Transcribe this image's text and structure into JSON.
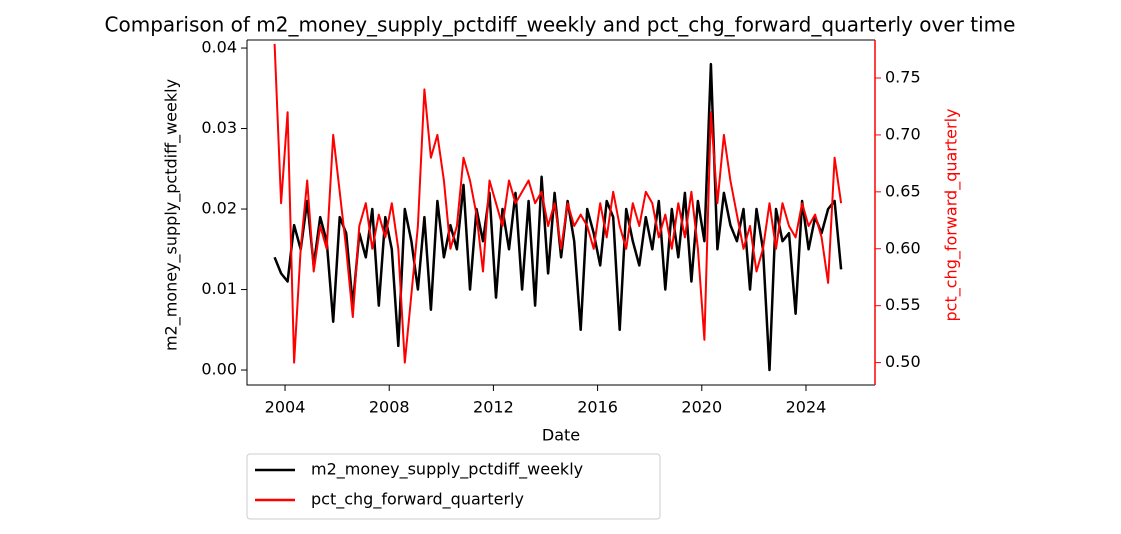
{
  "chart_data": {
    "type": "line",
    "title": "Comparison of m2_money_supply_pctdiff_weekly and pct_chg_forward_quarterly over time",
    "x_label": "Date",
    "y_label": "m2_money_supply_pctdiff_weekly",
    "y2_label": "pct_chg_forward_quarterly",
    "x": [
      2003.6,
      2003.85,
      2004.1,
      2004.35,
      2004.6,
      2004.85,
      2005.1,
      2005.35,
      2005.6,
      2005.85,
      2006.1,
      2006.35,
      2006.6,
      2006.85,
      2007.1,
      2007.35,
      2007.6,
      2007.85,
      2008.1,
      2008.35,
      2008.6,
      2008.85,
      2009.1,
      2009.35,
      2009.6,
      2009.85,
      2010.1,
      2010.35,
      2010.6,
      2010.85,
      2011.1,
      2011.35,
      2011.6,
      2011.85,
      2012.1,
      2012.35,
      2012.6,
      2012.85,
      2013.1,
      2013.35,
      2013.6,
      2013.85,
      2014.1,
      2014.35,
      2014.6,
      2014.85,
      2015.1,
      2015.35,
      2015.6,
      2015.85,
      2016.1,
      2016.35,
      2016.6,
      2016.85,
      2017.1,
      2017.35,
      2017.6,
      2017.85,
      2018.1,
      2018.35,
      2018.6,
      2018.85,
      2019.1,
      2019.35,
      2019.6,
      2019.85,
      2020.1,
      2020.35,
      2020.6,
      2020.85,
      2021.1,
      2021.35,
      2021.6,
      2021.85,
      2022.1,
      2022.35,
      2022.6,
      2022.85,
      2023.1,
      2023.35,
      2023.6,
      2023.85,
      2024.1,
      2024.35,
      2024.6,
      2024.85,
      2025.1,
      2025.35
    ],
    "series": [
      {
        "name": "m2_money_supply_pctdiff_weekly",
        "color": "#000000",
        "axis": "y",
        "values": [
          0.014,
          0.012,
          0.011,
          0.018,
          0.015,
          0.021,
          0.013,
          0.019,
          0.016,
          0.006,
          0.019,
          0.017,
          0.008,
          0.017,
          0.014,
          0.02,
          0.008,
          0.019,
          0.015,
          0.003,
          0.02,
          0.016,
          0.01,
          0.019,
          0.0075,
          0.021,
          0.014,
          0.018,
          0.015,
          0.023,
          0.01,
          0.02,
          0.016,
          0.022,
          0.009,
          0.02,
          0.015,
          0.022,
          0.01,
          0.021,
          0.008,
          0.024,
          0.012,
          0.022,
          0.014,
          0.021,
          0.016,
          0.005,
          0.02,
          0.017,
          0.013,
          0.021,
          0.019,
          0.005,
          0.02,
          0.016,
          0.013,
          0.019,
          0.015,
          0.021,
          0.01,
          0.02,
          0.014,
          0.022,
          0.011,
          0.021,
          0.016,
          0.038,
          0.015,
          0.022,
          0.018,
          0.016,
          0.02,
          0.01,
          0.02,
          0.015,
          0.0,
          0.02,
          0.016,
          0.017,
          0.007,
          0.021,
          0.015,
          0.019,
          0.017,
          0.02,
          0.021,
          0.0125
        ]
      },
      {
        "name": "pct_chg_forward_quarterly",
        "color": "#ff0000",
        "axis": "y2",
        "values": [
          0.78,
          0.64,
          0.72,
          0.5,
          0.6,
          0.66,
          0.58,
          0.62,
          0.6,
          0.7,
          0.65,
          0.6,
          0.54,
          0.62,
          0.64,
          0.6,
          0.63,
          0.61,
          0.64,
          0.6,
          0.5,
          0.56,
          0.62,
          0.74,
          0.68,
          0.7,
          0.66,
          0.6,
          0.62,
          0.68,
          0.66,
          0.63,
          0.58,
          0.66,
          0.64,
          0.62,
          0.66,
          0.64,
          0.65,
          0.66,
          0.64,
          0.65,
          0.62,
          0.64,
          0.6,
          0.64,
          0.62,
          0.63,
          0.62,
          0.6,
          0.64,
          0.61,
          0.65,
          0.62,
          0.6,
          0.64,
          0.62,
          0.65,
          0.64,
          0.61,
          0.63,
          0.6,
          0.64,
          0.61,
          0.65,
          0.6,
          0.52,
          0.72,
          0.64,
          0.7,
          0.66,
          0.63,
          0.6,
          0.62,
          0.58,
          0.6,
          0.64,
          0.6,
          0.64,
          0.62,
          0.61,
          0.64,
          0.62,
          0.63,
          0.61,
          0.57,
          0.68,
          0.64
        ]
      }
    ],
    "xlim": [
      2002.54,
      2026.65
    ],
    "xticks": [
      2004,
      2008,
      2012,
      2016,
      2020,
      2024
    ],
    "ylim": [
      -0.00186,
      0.041
    ],
    "yticks": [
      {
        "value": 0,
        "label": "0.00"
      },
      {
        "value": 0.01,
        "label": "0.01"
      },
      {
        "value": 0.02,
        "label": "0.02"
      },
      {
        "value": 0.03,
        "label": "0.03"
      },
      {
        "value": 0.04,
        "label": "0.04"
      }
    ],
    "y2lim": [
      0.4803,
      0.7834
    ],
    "y2ticks": [
      {
        "value": 0.5,
        "label": "0.50"
      },
      {
        "value": 0.55,
        "label": "0.55"
      },
      {
        "value": 0.6,
        "label": "0.60"
      },
      {
        "value": 0.65,
        "label": "0.65"
      },
      {
        "value": 0.7,
        "label": "0.70"
      },
      {
        "value": 0.75,
        "label": "0.75"
      }
    ],
    "y2_color": "#ff0000",
    "grid": false,
    "legend": "below"
  }
}
